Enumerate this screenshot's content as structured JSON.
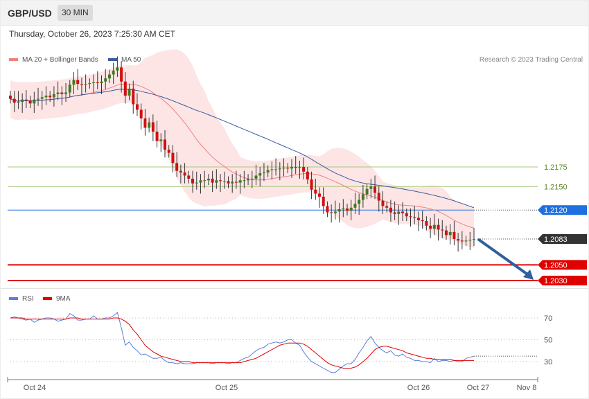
{
  "header": {
    "symbol": "GBP/USD",
    "timeframe": "30 MIN"
  },
  "timestamp": "Thursday, October 26, 2023 7:25:30 AM CET",
  "legend": {
    "main": [
      {
        "label": "MA 20 + Bollinger Bands",
        "color": "#f08080"
      },
      {
        "label": "MA 50",
        "color": "#3a5b9c"
      }
    ],
    "rsi": [
      {
        "label": "RSI",
        "color": "#5b7fd6"
      },
      {
        "label": "9MA",
        "color": "#e00000"
      }
    ]
  },
  "credit": "Research © 2023 Trading Central",
  "chart_data": [
    {
      "type": "candlestick",
      "ylim": [
        1.2015,
        1.2345
      ],
      "price_levels": [
        {
          "value": 1.2175,
          "label": "1.2175",
          "style": "resistance",
          "color": "#a7c97a"
        },
        {
          "value": 1.215,
          "label": "1.2150",
          "style": "resistance",
          "color": "#a7c97a"
        },
        {
          "value": 1.212,
          "label": "1.2120",
          "style": "pivot",
          "color": "#1e6fe0"
        },
        {
          "value": 1.2083,
          "label": "1.2083",
          "style": "last",
          "color": "#333333"
        },
        {
          "value": 1.205,
          "label": "1.2050",
          "style": "target",
          "color": "#e00000"
        },
        {
          "value": 1.203,
          "label": "1.2030",
          "style": "target",
          "color": "#e00000"
        }
      ],
      "candles_close": [
        1.2262,
        1.2257,
        1.2258,
        1.2261,
        1.226,
        1.2256,
        1.2261,
        1.2262,
        1.2264,
        1.2266,
        1.2264,
        1.2268,
        1.227,
        1.2268,
        1.227,
        1.228,
        1.2286,
        1.2281,
        1.228,
        1.2281,
        1.2282,
        1.2283,
        1.2282,
        1.2284,
        1.2288,
        1.2293,
        1.2298,
        1.2302,
        1.2284,
        1.2266,
        1.2275,
        1.2255,
        1.2248,
        1.2237,
        1.2225,
        1.2232,
        1.222,
        1.2208,
        1.221,
        1.2197,
        1.2193,
        1.218,
        1.217,
        1.2168,
        1.2164,
        1.216,
        1.2154,
        1.2155,
        1.2158,
        1.2158,
        1.216,
        1.2155,
        1.2158,
        1.2157,
        1.2157,
        1.2154,
        1.2156,
        1.2155,
        1.2158,
        1.2158,
        1.216,
        1.216,
        1.2164,
        1.2167,
        1.2168,
        1.2171,
        1.2172,
        1.2172,
        1.2173,
        1.2174,
        1.2173,
        1.2175,
        1.2174,
        1.2175,
        1.2169,
        1.2159,
        1.2146,
        1.2141,
        1.2137,
        1.2125,
        1.2117,
        1.2116,
        1.2118,
        1.2121,
        1.2122,
        1.2119,
        1.2123,
        1.2128,
        1.2133,
        1.214,
        1.2147,
        1.215,
        1.2142,
        1.2132,
        1.2125,
        1.2123,
        1.2117,
        1.2115,
        1.2118,
        1.2116,
        1.2112,
        1.2111,
        1.211,
        1.2107,
        1.2106,
        1.21,
        1.2096,
        1.2101,
        1.2095,
        1.2094,
        1.2088,
        1.2092,
        1.2083,
        1.2081,
        1.208,
        1.2081,
        1.2082,
        1.2083
      ]
    },
    {
      "type": "line",
      "title": "RSI",
      "ylim": [
        15,
        85
      ],
      "yticks": [
        30,
        50,
        70
      ],
      "x_labels": [
        "Oct 24",
        "Oct 25",
        "Oct 26",
        "Oct 27",
        "Nov 8"
      ],
      "series": [
        {
          "name": "RSI",
          "values": [
            70,
            71,
            70,
            69,
            68,
            69,
            66,
            68,
            69,
            70,
            70,
            69,
            67,
            68,
            69,
            74,
            72,
            68,
            68,
            69,
            69,
            72,
            69,
            69,
            70,
            70,
            72,
            75,
            61,
            45,
            48,
            43,
            40,
            36,
            37,
            35,
            33,
            33,
            34,
            31,
            29,
            29,
            28,
            29,
            28,
            28,
            28,
            29,
            29,
            29,
            29,
            28,
            29,
            29,
            29,
            28,
            29,
            29,
            31,
            33,
            34,
            37,
            40,
            42,
            43,
            46,
            47,
            48,
            47,
            48,
            50,
            50,
            47,
            45,
            39,
            34,
            30,
            28,
            26,
            24,
            22,
            20,
            20,
            23,
            26,
            28,
            28,
            32,
            38,
            43,
            49,
            53,
            47,
            43,
            40,
            38,
            40,
            36,
            35,
            37,
            34,
            33,
            31,
            31,
            30,
            30,
            29,
            33,
            30,
            31,
            31,
            30,
            31,
            30,
            30,
            33,
            34,
            35
          ]
        },
        {
          "name": "9MA",
          "values": [
            70,
            70,
            70,
            70,
            69,
            69,
            69,
            69,
            69,
            69,
            69,
            69,
            69,
            69,
            69,
            70,
            70,
            70,
            69,
            69,
            69,
            69,
            69,
            69,
            69,
            69,
            70,
            70,
            69,
            67,
            64,
            59,
            55,
            50,
            45,
            42,
            39,
            37,
            35,
            34,
            33,
            32,
            31,
            30,
            30,
            30,
            29,
            29,
            29,
            29,
            29,
            29,
            29,
            29,
            29,
            29,
            29,
            29,
            29,
            30,
            31,
            32,
            33,
            35,
            37,
            39,
            41,
            43,
            45,
            46,
            47,
            47,
            47,
            47,
            46,
            44,
            41,
            38,
            35,
            32,
            29,
            27,
            26,
            25,
            24,
            24,
            24,
            25,
            27,
            30,
            33,
            37,
            41,
            43,
            44,
            44,
            43,
            42,
            41,
            40,
            38,
            37,
            36,
            35,
            34,
            33,
            33,
            32,
            32,
            32,
            32,
            32,
            31,
            31,
            31,
            31,
            31,
            31
          ]
        }
      ]
    }
  ]
}
